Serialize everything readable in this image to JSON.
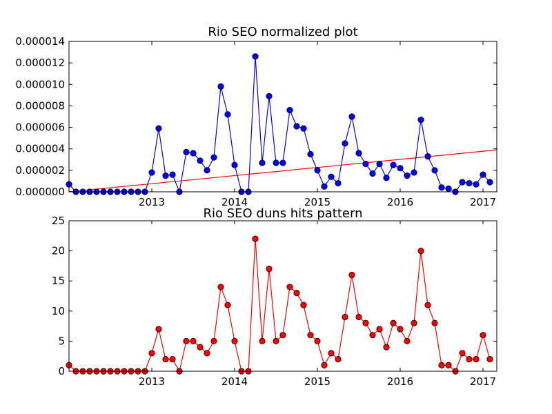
{
  "chart_data": [
    {
      "type": "line",
      "title": "Rio SEO normalized plot",
      "xlabel": "",
      "ylabel": "",
      "x_start": "2012-01",
      "x_interval": "month",
      "xlim": [
        "2012-01",
        "2017-03"
      ],
      "ylim": [
        0,
        1.4e-05
      ],
      "x_ticks": [
        "2013",
        "2014",
        "2015",
        "2016",
        "2017"
      ],
      "y_ticks": [
        "0.000000",
        "0.000002",
        "0.000004",
        "0.000006",
        "0.000008",
        "0.000010",
        "0.000012",
        "0.000014"
      ],
      "grid": false,
      "legend": "none",
      "series": [
        {
          "color": "#0000ff",
          "marker": "circle",
          "values": [
            7e-07,
            0,
            0,
            0,
            0,
            0,
            0,
            0,
            0,
            0,
            0,
            0,
            1.8e-06,
            5.9e-06,
            1.5e-06,
            1.6e-06,
            0,
            3.7e-06,
            3.6e-06,
            2.9e-06,
            2e-06,
            3.2e-06,
            9.8e-06,
            7.2e-06,
            2.5e-06,
            0,
            0,
            1.26e-05,
            2.7e-06,
            8.9e-06,
            2.7e-06,
            2.7e-06,
            7.6e-06,
            6.1e-06,
            5.9e-06,
            3.5e-06,
            2e-06,
            5e-07,
            1.4e-06,
            8e-07,
            4.5e-06,
            7e-06,
            3.6e-06,
            2.6e-06,
            1.7e-06,
            2.6e-06,
            1.3e-06,
            2.5e-06,
            2.2e-06,
            1.5e-06,
            1.8e-06,
            6.7e-06,
            3.3e-06,
            2e-06,
            4e-07,
            3e-07,
            0,
            9e-07,
            8e-07,
            7e-07,
            1.6e-06,
            9e-07
          ]
        }
      ],
      "trend_line": {
        "color": "#ff0000",
        "x": [
          "2012-01",
          "2017-03"
        ],
        "y": [
          0,
          3.9e-06
        ]
      }
    },
    {
      "type": "line",
      "title": "Rio SEO duns hits pattern",
      "xlabel": "",
      "ylabel": "",
      "x_start": "2012-01",
      "x_interval": "month",
      "xlim": [
        "2012-01",
        "2017-03"
      ],
      "ylim": [
        0,
        25
      ],
      "x_ticks": [
        "2013",
        "2014",
        "2015",
        "2016",
        "2017"
      ],
      "y_ticks": [
        "0",
        "5",
        "10",
        "15",
        "20",
        "25"
      ],
      "grid": false,
      "legend": "none",
      "series": [
        {
          "color": "#ff0000",
          "marker": "circle",
          "values": [
            1,
            0,
            0,
            0,
            0,
            0,
            0,
            0,
            0,
            0,
            0,
            0,
            3,
            7,
            2,
            2,
            0,
            5,
            5,
            4,
            3,
            5,
            14,
            11,
            5,
            0,
            0,
            22,
            5,
            17,
            5,
            6,
            14,
            13,
            11,
            6,
            5,
            1,
            3,
            2,
            9,
            16,
            9,
            8,
            6,
            7,
            4,
            8,
            7,
            5,
            8,
            20,
            11,
            8,
            1,
            1,
            0,
            3,
            2,
            2,
            6,
            2
          ]
        }
      ]
    }
  ]
}
